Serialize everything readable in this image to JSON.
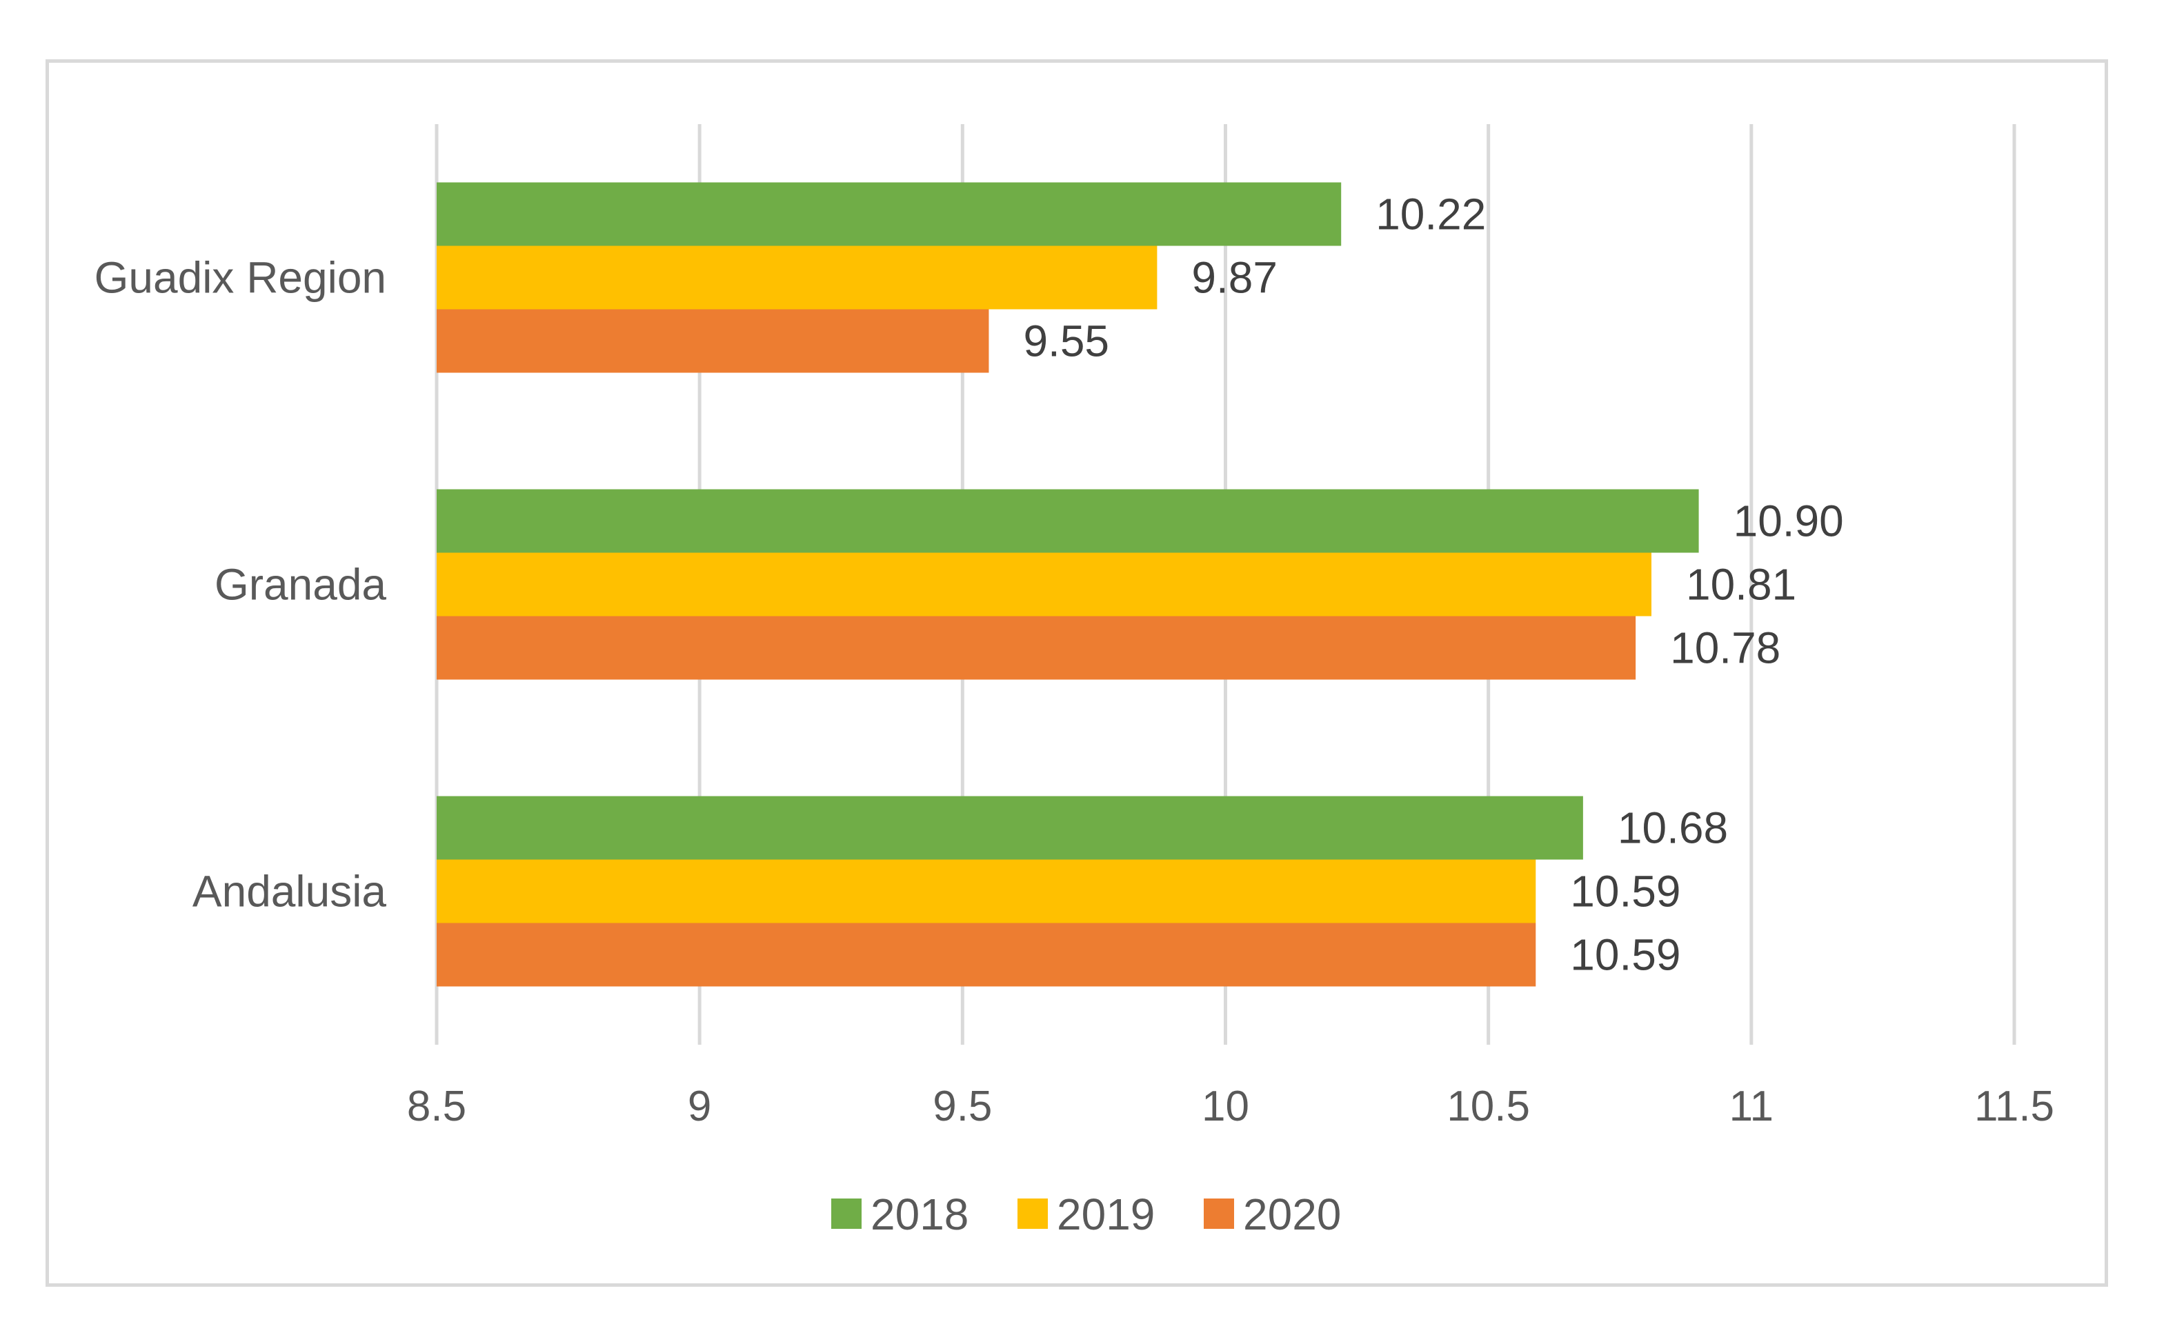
{
  "chart_data": {
    "type": "bar",
    "orientation": "horizontal",
    "categories": [
      "Guadix Region",
      "Granada",
      "Andalusia"
    ],
    "series": [
      {
        "name": "2018",
        "color": "#70ad47",
        "values": [
          10.22,
          10.9,
          10.68
        ],
        "labels": [
          "10.22",
          "10.90",
          "10.68"
        ]
      },
      {
        "name": "2019",
        "color": "#ffc000",
        "values": [
          9.87,
          10.81,
          10.59
        ],
        "labels": [
          "9.87",
          "10.81",
          "10.59"
        ]
      },
      {
        "name": "2020",
        "color": "#ed7d31",
        "values": [
          9.55,
          10.78,
          10.59
        ],
        "labels": [
          "9.55",
          "10.78",
          "10.59"
        ]
      }
    ],
    "xlim": [
      8.5,
      11.5
    ],
    "xticks": [
      "8.5",
      "9",
      "9.5",
      "10",
      "10.5",
      "11",
      "11.5"
    ],
    "grid": true,
    "legend": "bottom",
    "title": "",
    "xlabel": "",
    "ylabel": ""
  }
}
